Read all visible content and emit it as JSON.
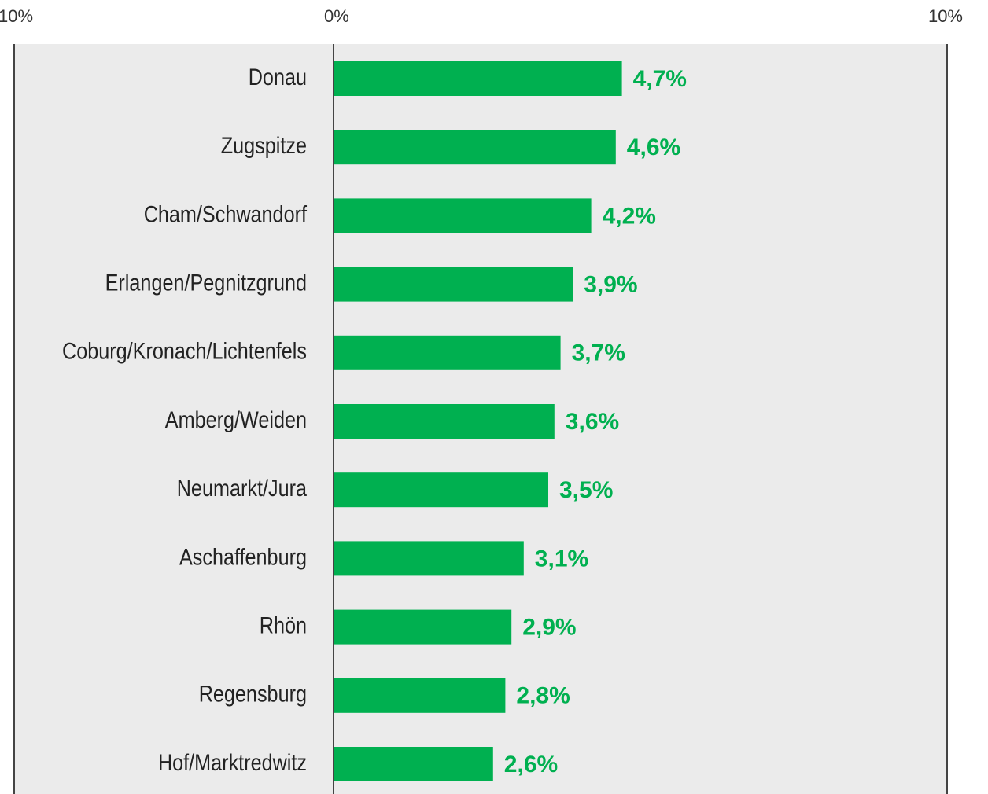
{
  "chart_data": {
    "type": "bar",
    "orientation": "horizontal",
    "categories": [
      "Donau",
      "Zugspitze",
      "Cham/Schwandorf",
      "Erlangen/Pegnitzgrund",
      "Coburg/Kronach/Lichtenfels",
      "Amberg/Weiden",
      "Neumarkt/Jura",
      "Aschaffenburg",
      "Rhön",
      "Regensburg",
      "Hof/Marktredwitz"
    ],
    "values": [
      4.7,
      4.6,
      4.2,
      3.9,
      3.7,
      3.6,
      3.5,
      3.1,
      2.9,
      2.8,
      2.6
    ],
    "value_labels": [
      "4,7%",
      "4,6%",
      "4,2%",
      "3,9%",
      "3,7%",
      "3,6%",
      "3,5%",
      "3,1%",
      "2,9%",
      "2,8%",
      "2,6%"
    ],
    "color": "#00b050",
    "xlim": [
      0,
      10
    ],
    "xticks": [
      {
        "value": 0,
        "label": "0%"
      },
      {
        "value": 10,
        "label": "10%"
      }
    ],
    "left_tick_label": "10%"
  }
}
